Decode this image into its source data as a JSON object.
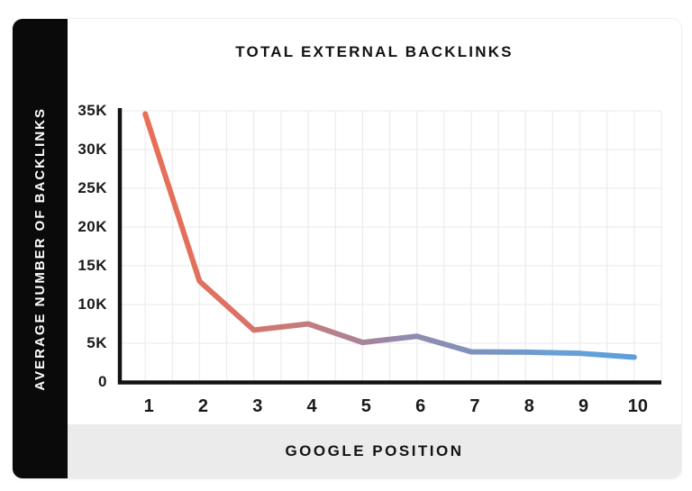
{
  "header": {
    "title": "TOTAL EXTERNAL BACKLINKS"
  },
  "y_axis_panel": {
    "label": "AVERAGE NUMBER OF BACKLINKS"
  },
  "x_axis_panel": {
    "label": "GOOGLE POSITION"
  },
  "chart_data": {
    "type": "line",
    "title": "TOTAL EXTERNAL BACKLINKS",
    "xlabel": "GOOGLE POSITION",
    "ylabel": "AVERAGE NUMBER OF BACKLINKS",
    "categories": [
      "1",
      "2",
      "3",
      "4",
      "5",
      "6",
      "7",
      "8",
      "9",
      "10"
    ],
    "values": [
      34600,
      13000,
      6700,
      7500,
      5100,
      5900,
      3900,
      3850,
      3700,
      3200
    ],
    "ylim": [
      0,
      35000
    ],
    "y_ticks": [
      {
        "label": "35K",
        "value": 35000
      },
      {
        "label": "30K",
        "value": 30000
      },
      {
        "label": "25K",
        "value": 25000
      },
      {
        "label": "20K",
        "value": 20000
      },
      {
        "label": "15K",
        "value": 15000
      },
      {
        "label": "10K",
        "value": 10000
      },
      {
        "label": "5K",
        "value": 5000
      },
      {
        "label": "0",
        "value": 0
      }
    ],
    "grid": {
      "show": true,
      "vertical_divisions": 20,
      "color": "#ededed"
    },
    "legend": false,
    "line_width": 6,
    "gradient_stops": [
      {
        "offset": 0.0,
        "color": "#E86F54"
      },
      {
        "offset": 0.18,
        "color": "#DC7263"
      },
      {
        "offset": 0.38,
        "color": "#B97F88"
      },
      {
        "offset": 0.52,
        "color": "#9589AA"
      },
      {
        "offset": 0.68,
        "color": "#7E92BE"
      },
      {
        "offset": 0.85,
        "color": "#67A0D8"
      },
      {
        "offset": 1.0,
        "color": "#5C9EDC"
      }
    ],
    "colors": {
      "axis": "#121212",
      "tick_text": "#1a1a1a",
      "band_background": "#ebebeb",
      "sidebar_background": "#0a0a0a",
      "sidebar_text": "#ffffff",
      "card_background": "#ffffff"
    }
  }
}
